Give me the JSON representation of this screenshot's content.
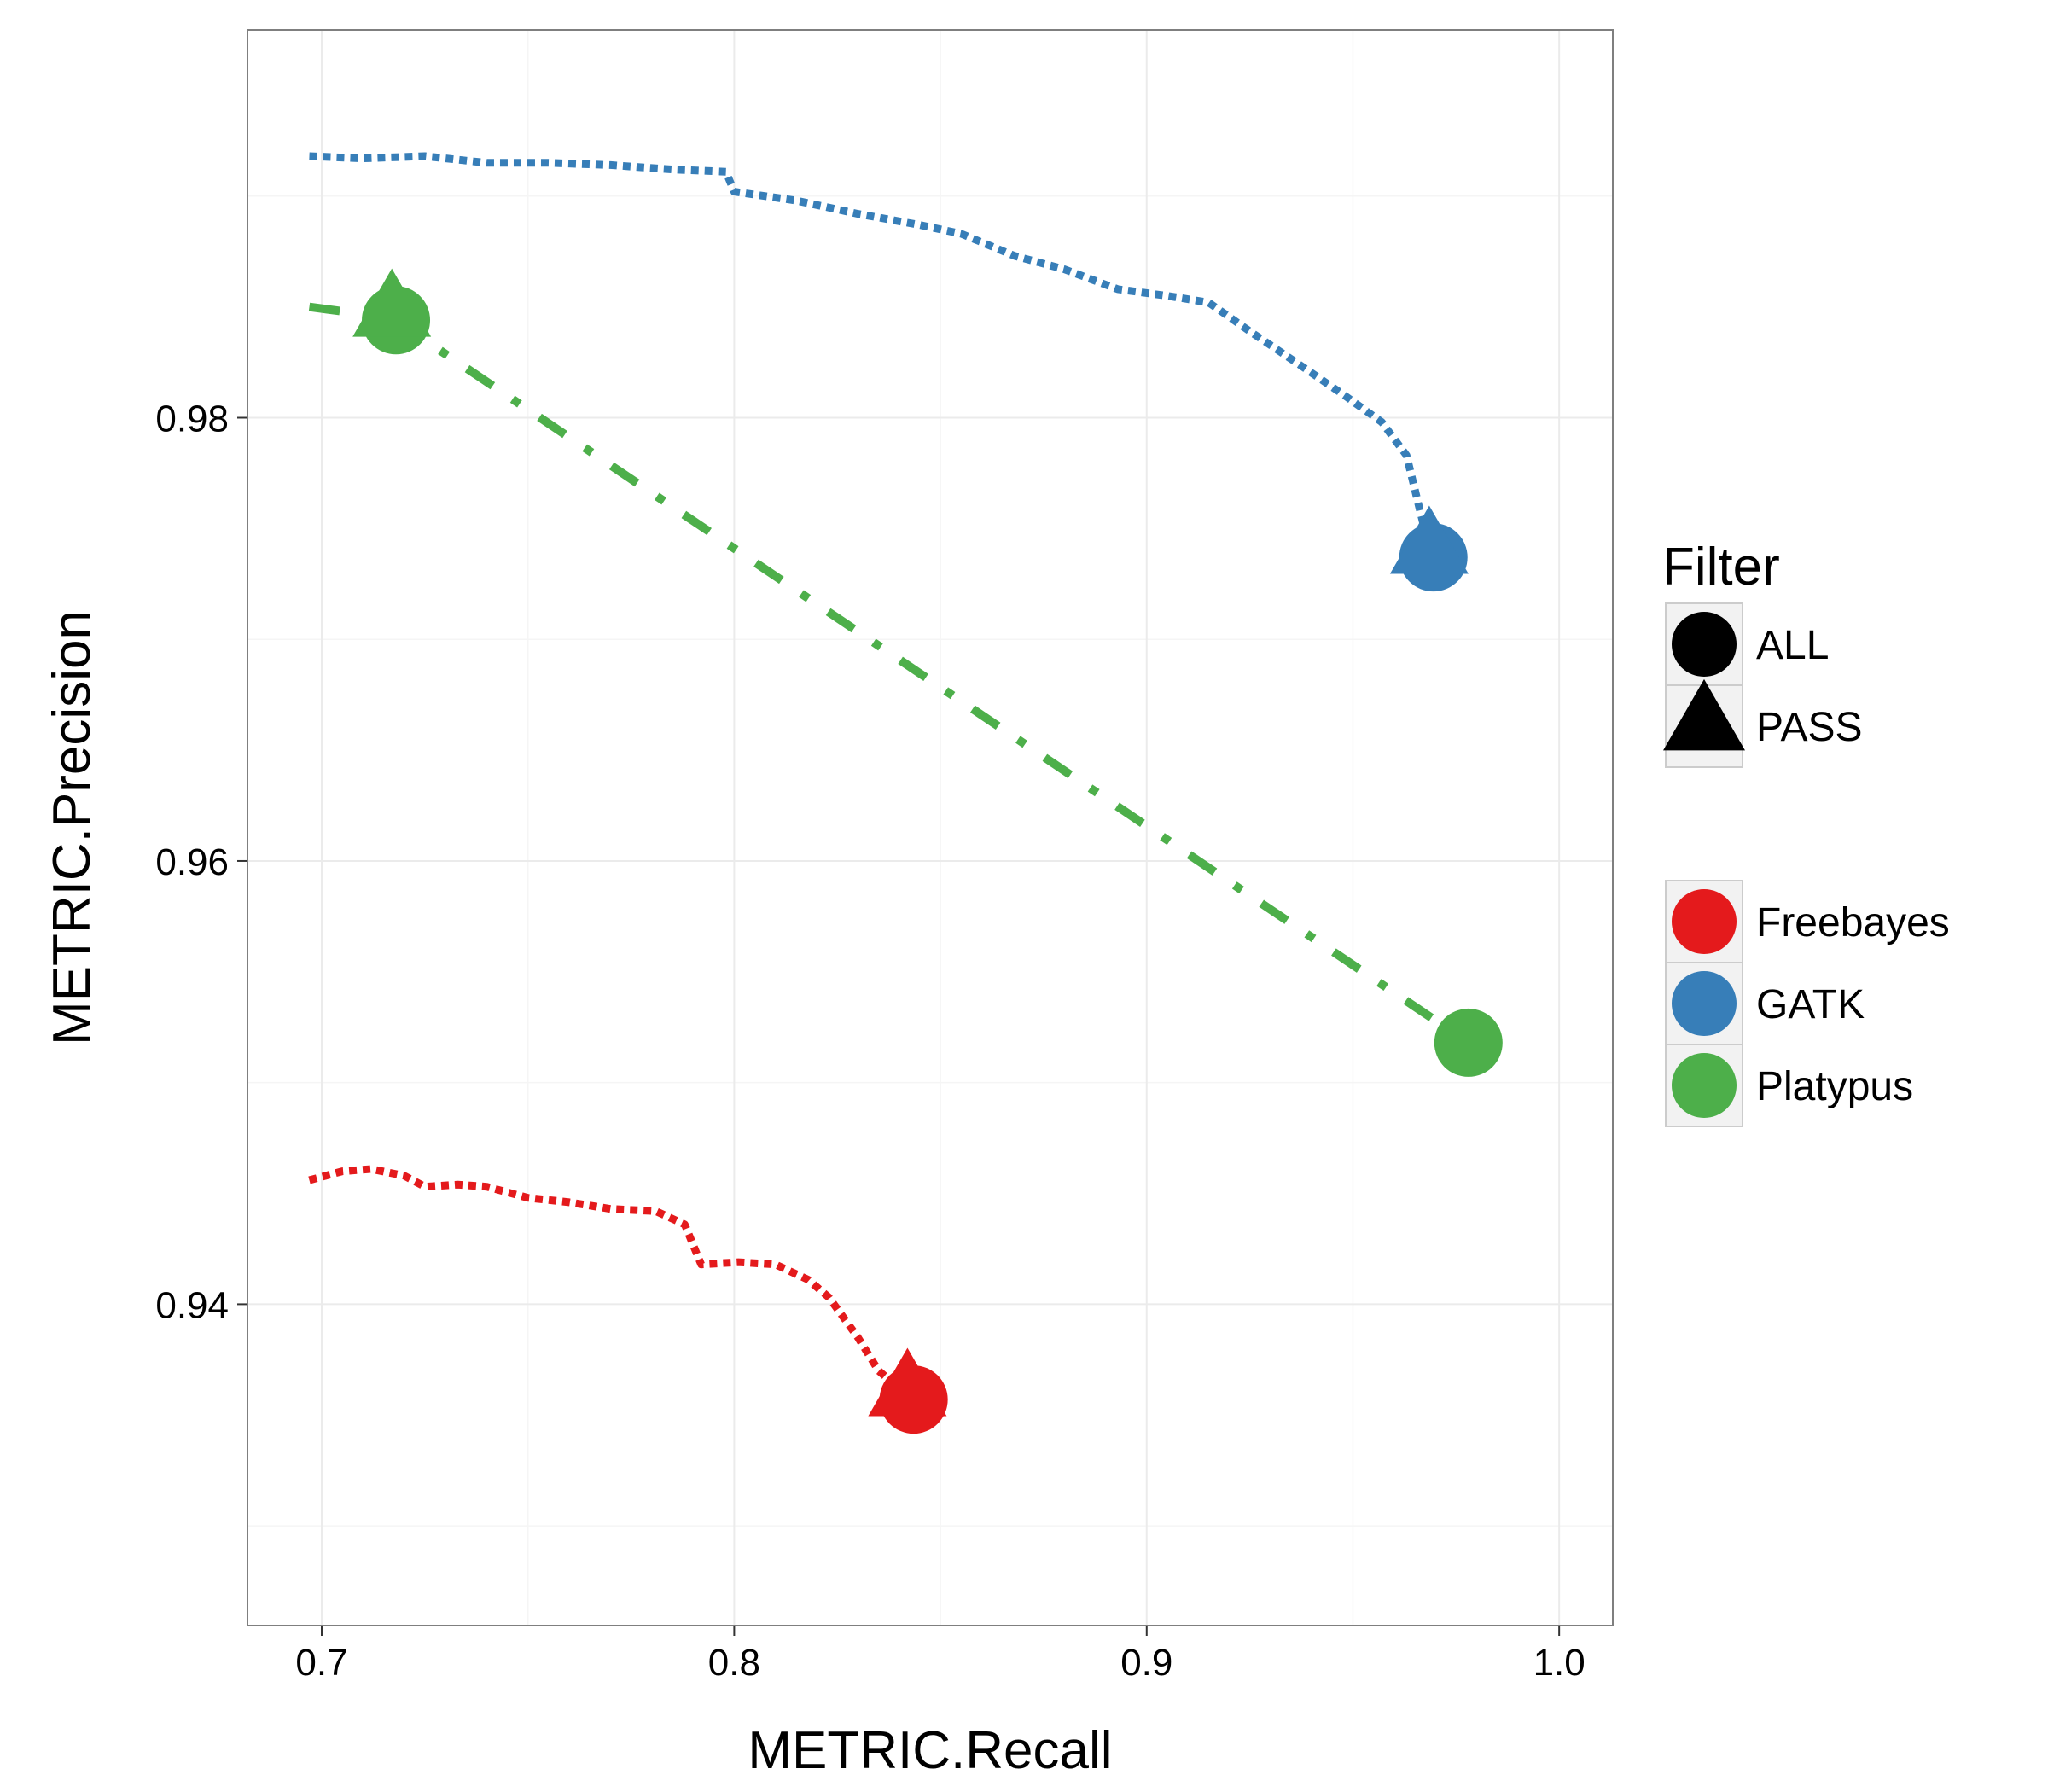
{
  "chart_data": {
    "type": "line",
    "xlabel": "METRIC.Recall",
    "ylabel": "METRIC.Precision",
    "xlim": [
      0.682,
      1.013
    ],
    "ylim": [
      0.9255,
      0.9975
    ],
    "x_ticks": [
      0.7,
      0.8,
      0.9,
      1.0
    ],
    "x_tick_labels": [
      "0.7",
      "0.8",
      "0.9",
      "1.0"
    ],
    "y_ticks": [
      0.94,
      0.96,
      0.98
    ],
    "y_tick_labels": [
      "0.94",
      "0.96",
      "0.98"
    ],
    "grid": true,
    "legend_position": "right",
    "series": [
      {
        "name": "Freebayes",
        "color": "#E41A1C",
        "dash": "dotted",
        "points": [
          [
            0.697,
            0.9456
          ],
          [
            0.705,
            0.946
          ],
          [
            0.712,
            0.9461
          ],
          [
            0.72,
            0.9458
          ],
          [
            0.725,
            0.9453
          ],
          [
            0.733,
            0.9454
          ],
          [
            0.74,
            0.9453
          ],
          [
            0.75,
            0.9448
          ],
          [
            0.76,
            0.9446
          ],
          [
            0.77,
            0.9443
          ],
          [
            0.781,
            0.9442
          ],
          [
            0.788,
            0.9436
          ],
          [
            0.792,
            0.9418
          ],
          [
            0.801,
            0.9419
          ],
          [
            0.81,
            0.9418
          ],
          [
            0.818,
            0.9411
          ],
          [
            0.823,
            0.9403
          ],
          [
            0.83,
            0.9385
          ],
          [
            0.835,
            0.937
          ],
          [
            0.84,
            0.9362
          ]
        ]
      },
      {
        "name": "GATK",
        "color": "#377EB8",
        "dash": "dotted",
        "points": [
          [
            0.697,
            0.9918
          ],
          [
            0.71,
            0.9917
          ],
          [
            0.725,
            0.9918
          ],
          [
            0.74,
            0.9915
          ],
          [
            0.755,
            0.9915
          ],
          [
            0.77,
            0.9914
          ],
          [
            0.785,
            0.9912
          ],
          [
            0.798,
            0.9911
          ],
          [
            0.8,
            0.9902
          ],
          [
            0.815,
            0.9898
          ],
          [
            0.83,
            0.9892
          ],
          [
            0.845,
            0.9887
          ],
          [
            0.855,
            0.9883
          ],
          [
            0.868,
            0.9873
          ],
          [
            0.88,
            0.9867
          ],
          [
            0.893,
            0.9858
          ],
          [
            0.905,
            0.9855
          ],
          [
            0.915,
            0.9852
          ],
          [
            0.925,
            0.9839
          ],
          [
            0.937,
            0.9824
          ],
          [
            0.948,
            0.981
          ],
          [
            0.957,
            0.9798
          ],
          [
            0.963,
            0.9783
          ],
          [
            0.966,
            0.976
          ],
          [
            0.968,
            0.9745
          ]
        ]
      },
      {
        "name": "Platypus",
        "color": "#4DAF4A",
        "dash": "dashdot",
        "points": [
          [
            0.697,
            0.985
          ],
          [
            0.717,
            0.9845
          ],
          [
            0.978,
            0.9518
          ]
        ]
      }
    ],
    "markers": [
      {
        "series": "Freebayes",
        "filter": "ALL",
        "x": 0.8435,
        "y": 0.9357
      },
      {
        "series": "Freebayes",
        "filter": "PASS",
        "x": 0.842,
        "y": 0.936
      },
      {
        "series": "GATK",
        "filter": "ALL",
        "x": 0.9695,
        "y": 0.9737
      },
      {
        "series": "GATK",
        "filter": "PASS",
        "x": 0.9685,
        "y": 0.974
      },
      {
        "series": "Platypus",
        "filter": "ALL",
        "x": 0.978,
        "y": 0.9518
      },
      {
        "series": "Platypus",
        "filter": "ALL",
        "x": 0.718,
        "y": 0.9844
      },
      {
        "series": "Platypus",
        "filter": "PASS",
        "x": 0.717,
        "y": 0.9847
      }
    ],
    "legend": {
      "shape_title": "Filter",
      "shapes": [
        {
          "label": "ALL",
          "shape": "circle"
        },
        {
          "label": "PASS",
          "shape": "triangle"
        }
      ],
      "colors": [
        {
          "label": "Freebayes",
          "color": "#E41A1C"
        },
        {
          "label": "GATK",
          "color": "#377EB8"
        },
        {
          "label": "Platypus",
          "color": "#4DAF4A"
        }
      ]
    }
  }
}
